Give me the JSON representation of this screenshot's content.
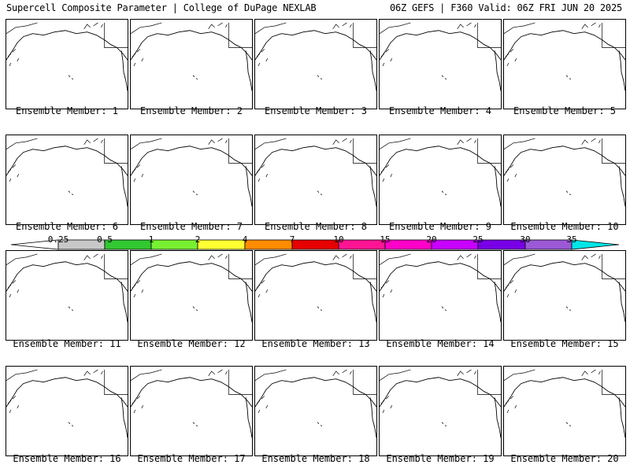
{
  "header": {
    "left_title": "Supercell Composite Parameter | College of DuPage NEXLAB",
    "right_title": "06Z GEFS | F360 Valid: 06Z FRI JUN 20 2025"
  },
  "members": [
    {
      "label": "Ensemble Member: 1"
    },
    {
      "label": "Ensemble Member: 2"
    },
    {
      "label": "Ensemble Member: 3"
    },
    {
      "label": "Ensemble Member: 4"
    },
    {
      "label": "Ensemble Member: 5"
    },
    {
      "label": "Ensemble Member: 6"
    },
    {
      "label": "Ensemble Member: 7"
    },
    {
      "label": "Ensemble Member: 8"
    },
    {
      "label": "Ensemble Member: 9"
    },
    {
      "label": "Ensemble Member: 10"
    },
    {
      "label": "Ensemble Member: 11"
    },
    {
      "label": "Ensemble Member: 12"
    },
    {
      "label": "Ensemble Member: 13"
    },
    {
      "label": "Ensemble Member: 14"
    },
    {
      "label": "Ensemble Member: 15"
    },
    {
      "label": "Ensemble Member: 16"
    },
    {
      "label": "Ensemble Member: 17"
    },
    {
      "label": "Ensemble Member: 18"
    },
    {
      "label": "Ensemble Member: 19"
    },
    {
      "label": "Ensemble Member: 20"
    }
  ],
  "colorbar": {
    "labels": [
      "0.25",
      "0.5",
      "1",
      "2",
      "4",
      "7",
      "10",
      "15",
      "20",
      "25",
      "30",
      "35"
    ],
    "colors": [
      "#c8c8c8",
      "#32c832",
      "#78f032",
      "#ffff32",
      "#ff8c00",
      "#e60000",
      "#ff1493",
      "#ff00c8",
      "#c800ff",
      "#7800e6",
      "#9b59d6",
      "#00e6e6"
    ]
  }
}
